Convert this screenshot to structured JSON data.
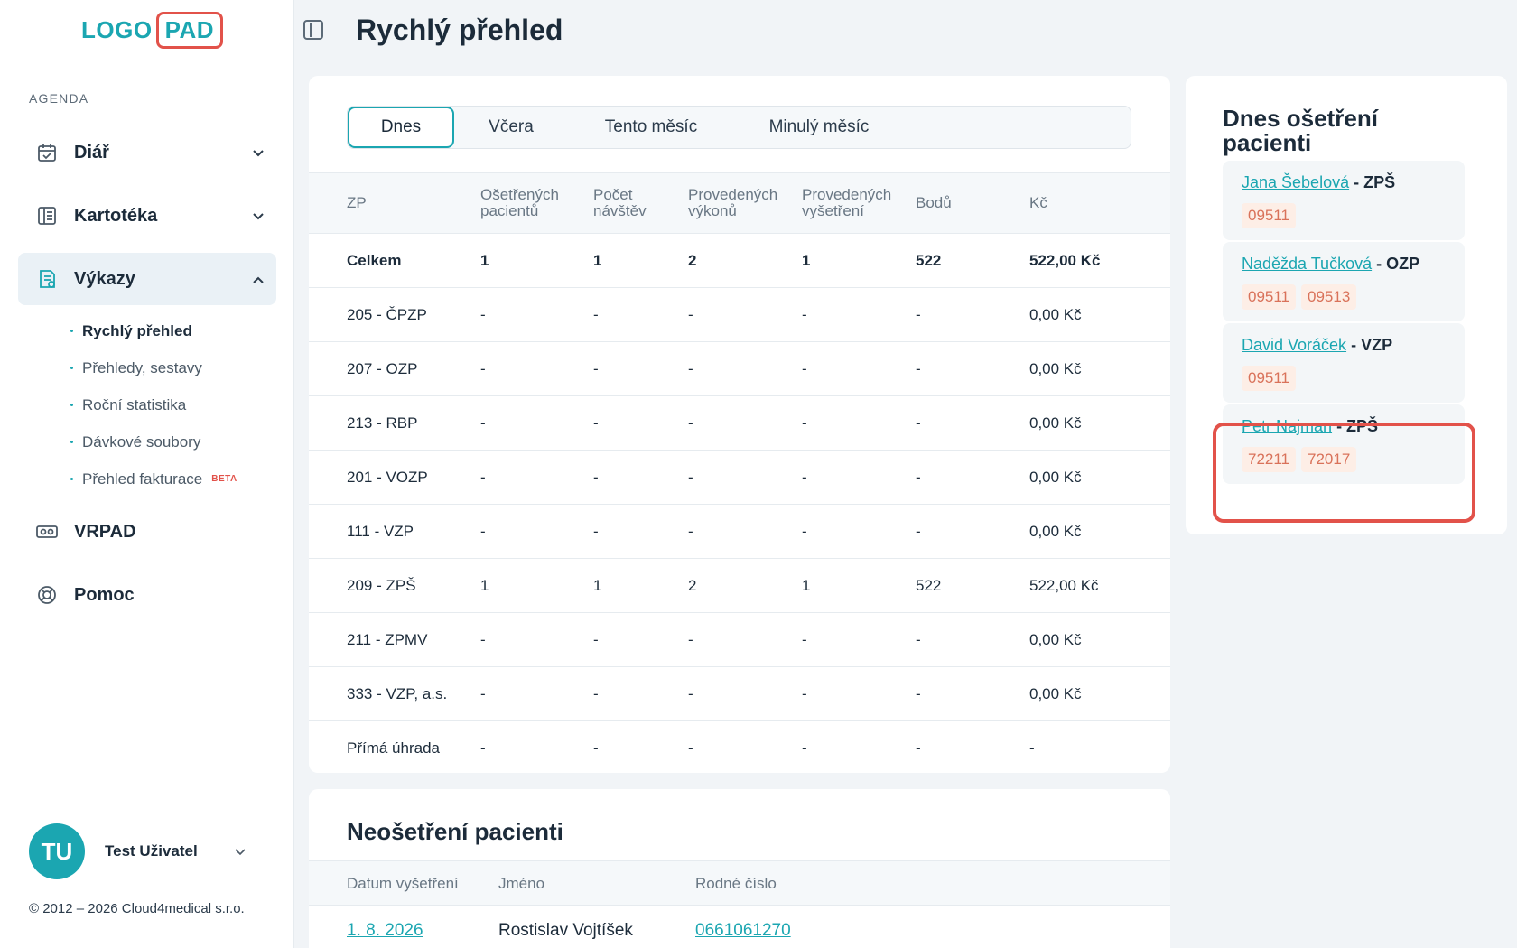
{
  "logo": {
    "part1": "LOGO",
    "part2": "PAD"
  },
  "sidebar": {
    "section_label": "AGENDA",
    "items": [
      {
        "label": "Diář",
        "icon": "calendar-icon"
      },
      {
        "label": "Kartotéka",
        "icon": "book-icon"
      },
      {
        "label": "Výkazy",
        "icon": "report-icon"
      }
    ],
    "subitems": [
      {
        "label": "Rychlý přehled"
      },
      {
        "label": "Přehledy, sestavy"
      },
      {
        "label": "Roční statistika"
      },
      {
        "label": "Dávkové soubory"
      },
      {
        "label": "Přehled fakturace",
        "badge": "BETA"
      }
    ],
    "items2": [
      {
        "label": "VRPAD",
        "icon": "vr-headset-icon"
      },
      {
        "label": "Pomoc",
        "icon": "lifebuoy-icon"
      }
    ]
  },
  "user": {
    "initials": "TU",
    "name": "Test Uživatel"
  },
  "copyright": "© 2012 – 2026 Cloud4medical s.r.o.",
  "header": {
    "title": "Rychlý přehled"
  },
  "tabs": [
    "Dnes",
    "Včera",
    "Tento měsíc",
    "Minulý měsíc"
  ],
  "table": {
    "headers": [
      "ZP",
      "Ošetřených pacientů",
      "Počet návštěv",
      "Provedených výkonů",
      "Provedených vyšetření",
      "Bodů",
      "Kč"
    ],
    "rows": [
      [
        "Celkem",
        "1",
        "1",
        "2",
        "1",
        "522",
        "522,00 Kč"
      ],
      [
        "205 - ČPZP",
        "-",
        "-",
        "-",
        "-",
        "-",
        "0,00 Kč"
      ],
      [
        "207 - OZP",
        "-",
        "-",
        "-",
        "-",
        "-",
        "0,00 Kč"
      ],
      [
        "213 - RBP",
        "-",
        "-",
        "-",
        "-",
        "-",
        "0,00 Kč"
      ],
      [
        "201 - VOZP",
        "-",
        "-",
        "-",
        "-",
        "-",
        "0,00 Kč"
      ],
      [
        "111 - VZP",
        "-",
        "-",
        "-",
        "-",
        "-",
        "0,00 Kč"
      ],
      [
        "209 - ZPŠ",
        "1",
        "1",
        "2",
        "1",
        "522",
        "522,00 Kč"
      ],
      [
        "211 - ZPMV",
        "-",
        "-",
        "-",
        "-",
        "-",
        "0,00 Kč"
      ],
      [
        "333 - VZP, a.s.",
        "-",
        "-",
        "-",
        "-",
        "-",
        "0,00 Kč"
      ],
      [
        "Přímá úhrada",
        "-",
        "-",
        "-",
        "-",
        "-",
        "-"
      ]
    ]
  },
  "untreated": {
    "title": "Neošetření pacienti",
    "headers": [
      "Datum vyšetření",
      "Jméno",
      "Rodné číslo"
    ],
    "row": {
      "date": "1. 8. 2026",
      "name": "Rostislav Vojtíšek",
      "rc": "0661061270"
    }
  },
  "treated": {
    "title": "Dnes ošetření pacienti",
    "patients": [
      {
        "name": "Jana Šebelová",
        "ins": "- ZPŠ",
        "codes": [
          "09511"
        ]
      },
      {
        "name": "Naděžda Tučková",
        "ins": "- OZP",
        "codes": [
          "09511",
          "09513"
        ]
      },
      {
        "name": "David Voráček",
        "ins": "- VZP",
        "codes": [
          "09511"
        ]
      },
      {
        "name": "Petr Najman",
        "ins": "- ZPŠ",
        "codes": [
          "72211",
          "72017"
        ]
      }
    ]
  },
  "colors": {
    "accent": "#1ba6b1",
    "highlight": "#e2524a",
    "code_bg": "#fdeee6"
  }
}
